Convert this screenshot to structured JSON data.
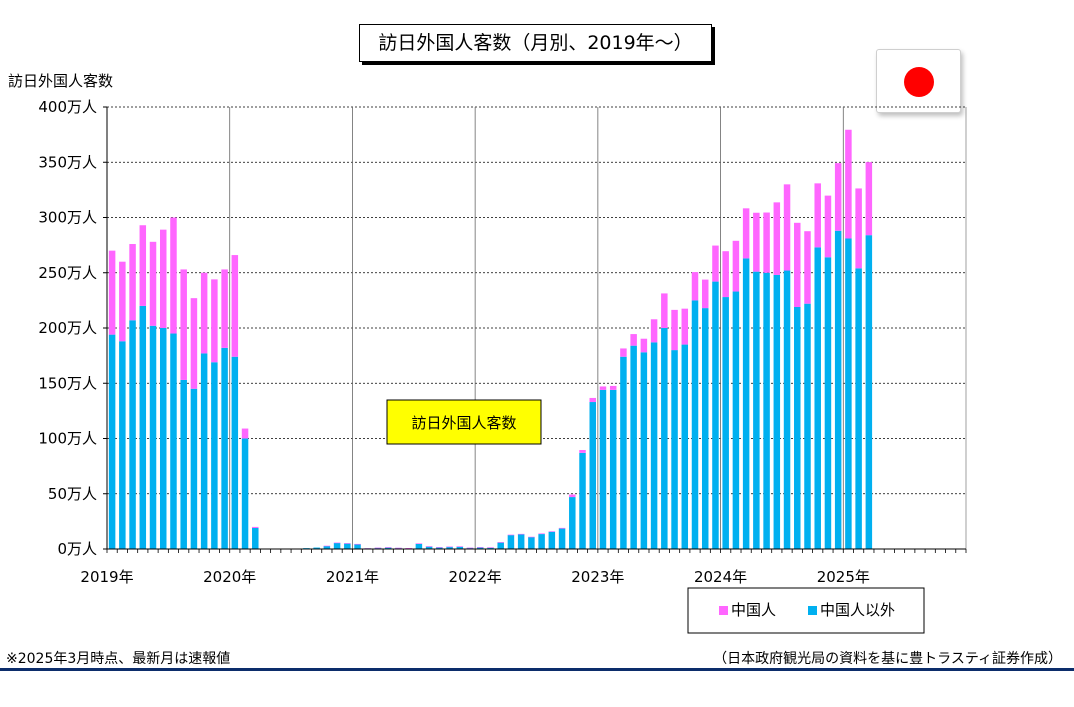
{
  "title": "訪日外国人客数（月別、2019年～）",
  "y_axis_title": "訪日外国人客数",
  "annotation": "訪日外国人客数",
  "footnote_left": "※2025年3月時点、最新月は速報値",
  "footnote_right": "（日本政府観光局の資料を基に豊トラスティ証券作成）",
  "colors": {
    "china": "#ff66ff",
    "other": "#00b0f0",
    "annotation_bg": "#ffff00",
    "flag": "#ff0000"
  },
  "flag_icon": "japan-flag-icon",
  "chart_data": {
    "type": "bar",
    "stacked": true,
    "title": "訪日外国人客数（月別、2019年～）",
    "ylabel": "訪日外国人客数",
    "unit": "万人",
    "ylim": [
      0,
      400
    ],
    "yticks": [
      "0万人",
      "50万人",
      "100万人",
      "150万人",
      "200万人",
      "250万人",
      "300万人",
      "350万人",
      "400万人"
    ],
    "year_labels": [
      "2019年",
      "2020年",
      "2021年",
      "2022年",
      "2023年",
      "2024年",
      "2025年"
    ],
    "grid": true,
    "legend_position": "bottom-right",
    "categories": [
      "2019-01",
      "2019-02",
      "2019-03",
      "2019-04",
      "2019-05",
      "2019-06",
      "2019-07",
      "2019-08",
      "2019-09",
      "2019-10",
      "2019-11",
      "2019-12",
      "2020-01",
      "2020-02",
      "2020-03",
      "2020-04",
      "2020-05",
      "2020-06",
      "2020-07",
      "2020-08",
      "2020-09",
      "2020-10",
      "2020-11",
      "2020-12",
      "2021-01",
      "2021-02",
      "2021-03",
      "2021-04",
      "2021-05",
      "2021-06",
      "2021-07",
      "2021-08",
      "2021-09",
      "2021-10",
      "2021-11",
      "2021-12",
      "2022-01",
      "2022-02",
      "2022-03",
      "2022-04",
      "2022-05",
      "2022-06",
      "2022-07",
      "2022-08",
      "2022-09",
      "2022-10",
      "2022-11",
      "2022-12",
      "2023-01",
      "2023-02",
      "2023-03",
      "2023-04",
      "2023-05",
      "2023-06",
      "2023-07",
      "2023-08",
      "2023-09",
      "2023-10",
      "2023-11",
      "2023-12",
      "2024-01",
      "2024-02",
      "2024-03",
      "2024-04",
      "2024-05",
      "2024-06",
      "2024-07",
      "2024-08",
      "2024-09",
      "2024-10",
      "2024-11",
      "2024-12",
      "2025-01",
      "2025-02",
      "2025-03",
      "2025-04",
      "2025-05",
      "2025-06",
      "2025-07",
      "2025-08",
      "2025-09",
      "2025-10",
      "2025-11",
      "2025-12"
    ],
    "series": [
      {
        "name": "中国人以外",
        "color": "#00b0f0",
        "values": [
          194,
          188,
          207,
          220,
          202,
          200,
          195,
          153,
          145,
          177,
          169,
          182,
          174,
          100,
          19,
          0.2,
          0.2,
          0.2,
          0.4,
          0.8,
          1.3,
          2.7,
          5.5,
          5.0,
          4.4,
          0.6,
          1.1,
          1.5,
          1.0,
          0.8,
          4.8,
          2.3,
          1.6,
          2.1,
          2.3,
          1.1,
          1.6,
          1.4,
          6.0,
          12.6,
          13.4,
          10.8,
          13.5,
          15.6,
          18.5,
          47,
          87,
          133,
          144,
          144,
          174,
          184,
          178,
          187,
          200,
          180,
          185,
          225,
          218,
          242,
          228,
          233,
          263,
          251,
          250,
          248,
          252,
          219,
          222,
          273,
          264,
          288,
          281,
          254,
          284,
          null,
          null,
          null,
          null,
          null,
          null,
          null,
          null,
          null
        ]
      },
      {
        "name": "中国人",
        "color": "#ff66ff",
        "values": [
          76,
          72,
          69,
          73,
          76,
          89,
          105,
          100,
          82,
          73,
          75,
          71,
          92,
          9,
          1,
          0,
          0,
          0,
          0,
          0,
          0,
          0.3,
          0.3,
          0.3,
          0.2,
          0.1,
          0.1,
          0.1,
          0.1,
          0.1,
          0.3,
          0.2,
          0.1,
          0.1,
          0.1,
          0.1,
          0.1,
          0.1,
          0.2,
          0.4,
          0.3,
          0.3,
          0.6,
          0.5,
          0.6,
          2.3,
          2.6,
          3.7,
          3.1,
          3.6,
          7.5,
          10.5,
          12.3,
          20.9,
          31.3,
          36.4,
          32.5,
          25.6,
          25.8,
          32.6,
          41.5,
          45.9,
          45.3,
          53.3,
          54.5,
          65.7,
          78.0,
          76.2,
          65.6,
          57.9,
          55.8,
          61.2,
          98.4,
          72.3,
          66.1,
          null,
          null,
          null,
          null,
          null,
          null,
          null,
          null,
          null
        ]
      }
    ]
  }
}
